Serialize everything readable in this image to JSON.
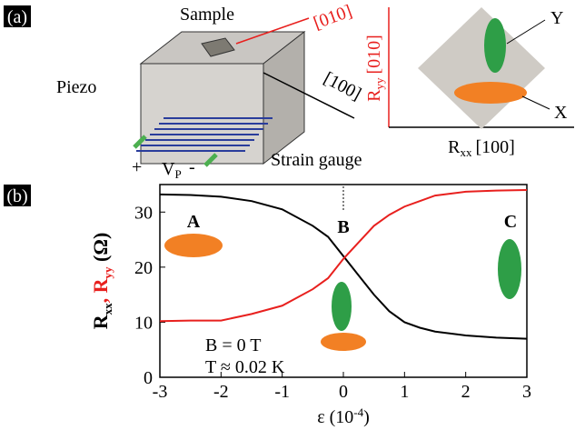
{
  "panel_a": {
    "label": "(a)",
    "sample": "Sample",
    "dir_010": "[010]",
    "dir_100": "[100]",
    "piezo": "Piezo",
    "plus": "+",
    "vp": "V",
    "vp_sub": "P",
    "minus": "-",
    "strain_gauge": "Strain gauge",
    "y_marker": "Y",
    "x_marker": "X",
    "ryy": "R",
    "ryy_sub": "yy",
    "ryy_dir": "[010]",
    "rxx": "R",
    "rxx_sub": "xx",
    "rxx_dir": "[100]"
  },
  "chart_data": {
    "type": "line",
    "panel_label": "(b)",
    "y_label_parts": [
      "R",
      "xx",
      ", R",
      "yy",
      " (Ω)"
    ],
    "x_label_parts": [
      "ε (10",
      "-4",
      ")"
    ],
    "annotations": [
      "A",
      "B",
      "C",
      "B = 0 T",
      "T ≈ 0.02 K"
    ],
    "x": [
      -3,
      -2.5,
      -2,
      -1.5,
      -1,
      -0.5,
      -0.25,
      0,
      0.25,
      0.5,
      0.75,
      1,
      1.25,
      1.5,
      2,
      2.5,
      3
    ],
    "series": [
      {
        "color": "#000000",
        "values": [
          33.2,
          33.1,
          32.8,
          32,
          30.5,
          27.5,
          25.5,
          22,
          18.5,
          15,
          12,
          10,
          9,
          8.3,
          7.6,
          7.2,
          7
        ]
      },
      {
        "color": "#e8201e",
        "values": [
          10.2,
          10.3,
          10.3,
          11.5,
          13,
          16,
          18,
          21.5,
          24.5,
          27.5,
          29.5,
          31,
          32,
          33,
          33.7,
          33.9,
          34
        ]
      }
    ],
    "xlim": [
      -3,
      3
    ],
    "ylim": [
      0,
      35
    ],
    "xticks": [
      -3,
      -2,
      -1,
      0,
      1,
      2,
      3
    ],
    "yticks": [
      0,
      10,
      20,
      30
    ]
  }
}
